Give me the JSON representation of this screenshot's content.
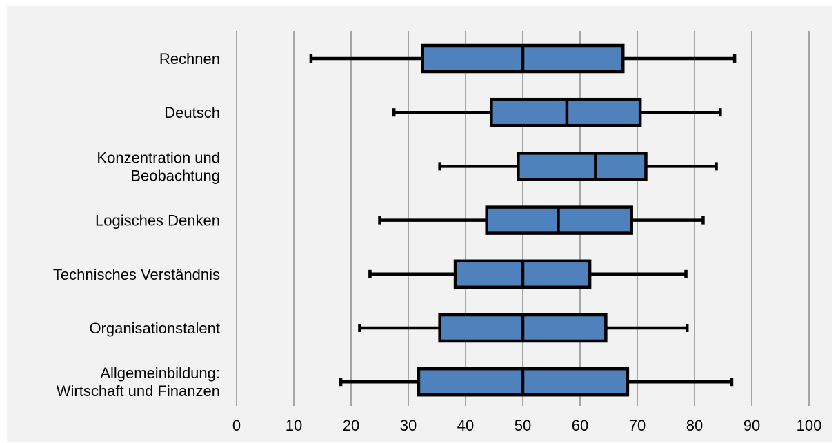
{
  "chart_data": {
    "type": "boxplot",
    "orientation": "horizontal",
    "title": "",
    "xlabel": "",
    "ylabel": "",
    "xlim": [
      0,
      100
    ],
    "xticks": [
      0,
      10,
      20,
      30,
      40,
      50,
      60,
      70,
      80,
      90,
      100
    ],
    "grid": "vertical",
    "legend": "none",
    "colors": {
      "box": "#4f81bd",
      "stroke": "#000000",
      "grid": "#8c8c8c",
      "background": "#f2f2f2"
    },
    "categories": [
      {
        "lines": [
          "Rechnen"
        ],
        "min": 13,
        "q1": 32.5,
        "median": 50,
        "q3": 67.5,
        "max": 87
      },
      {
        "lines": [
          "Deutsch"
        ],
        "min": 27.5,
        "q1": 44.5,
        "median": 57.7,
        "q3": 70.5,
        "max": 84.5
      },
      {
        "lines": [
          "Konzentration und",
          "Beobachtung"
        ],
        "min": 35.5,
        "q1": 49.2,
        "median": 62.7,
        "q3": 71.5,
        "max": 83.8
      },
      {
        "lines": [
          "Logisches Denken"
        ],
        "min": 25,
        "q1": 43.7,
        "median": 56.2,
        "q3": 69,
        "max": 81.5
      },
      {
        "lines": [
          "Technisches Verständnis"
        ],
        "min": 23.3,
        "q1": 38.2,
        "median": 50,
        "q3": 61.7,
        "max": 78.5
      },
      {
        "lines": [
          "Organisationstalent"
        ],
        "min": 21.5,
        "q1": 35.5,
        "median": 50,
        "q3": 64.5,
        "max": 78.7
      },
      {
        "lines": [
          "Allgemeinbildung:",
          "Wirtschaft und Finanzen"
        ],
        "min": 18.2,
        "q1": 31.8,
        "median": 50,
        "q3": 68.3,
        "max": 86.5
      }
    ]
  }
}
